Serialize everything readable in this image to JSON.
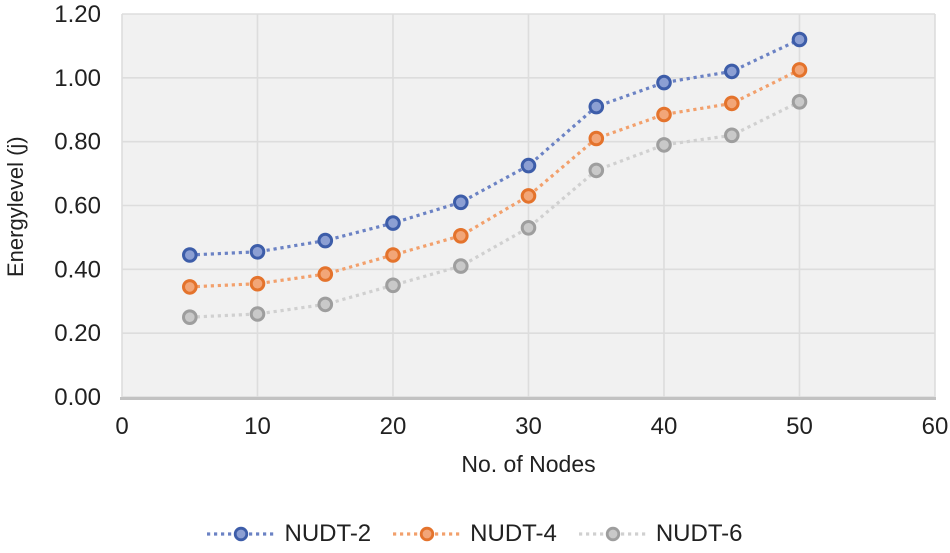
{
  "chart_data": {
    "type": "line",
    "title": "",
    "xlabel": "No. of Nodes",
    "ylabel": "Energylevel (j)",
    "x": [
      5,
      10,
      15,
      20,
      25,
      30,
      35,
      40,
      45,
      50
    ],
    "series": [
      {
        "name": "NUDT-2",
        "values": [
          0.445,
          0.455,
          0.49,
          0.545,
          0.61,
          0.725,
          0.91,
          0.985,
          1.02,
          1.12
        ],
        "line_color": "#6b82c4",
        "marker_stroke": "#3d5da9",
        "marker_fill": "#8b9ce4",
        "marker_fill_hex": "#8c9fd3"
      },
      {
        "name": "NUDT-4",
        "values": [
          0.345,
          0.355,
          0.385,
          0.445,
          0.505,
          0.63,
          0.81,
          0.885,
          0.92,
          1.025
        ],
        "line_color": "#f2a06c",
        "marker_stroke": "#e4732c",
        "marker_fill_hex": "#f2a678"
      },
      {
        "name": "NUDT-6",
        "values": [
          0.25,
          0.26,
          0.29,
          0.35,
          0.41,
          0.53,
          0.71,
          0.79,
          0.82,
          0.925
        ],
        "line_color": "#d0d0d0",
        "marker_stroke": "#9e9e9e",
        "marker_fill_hex": "#c9c9c9"
      }
    ],
    "xlim": [
      0,
      60
    ],
    "ylim": [
      0,
      1.2
    ],
    "x_ticks": [
      {
        "value": 0,
        "label": "0"
      },
      {
        "value": 10,
        "label": "10"
      },
      {
        "value": 20,
        "label": "20"
      },
      {
        "value": 30,
        "label": "30"
      },
      {
        "value": 40,
        "label": "40"
      },
      {
        "value": 50,
        "label": "50"
      },
      {
        "value": 60,
        "label": "60"
      }
    ],
    "y_ticks": [
      {
        "value": 0.0,
        "label": "0.00"
      },
      {
        "value": 0.2,
        "label": "0.20"
      },
      {
        "value": 0.4,
        "label": "0.40"
      },
      {
        "value": 0.6,
        "label": "0.60"
      },
      {
        "value": 0.8,
        "label": "0.80"
      },
      {
        "value": 1.0,
        "label": "1.00"
      },
      {
        "value": 1.2,
        "label": "1.20"
      }
    ],
    "grid": true,
    "legend_position": "bottom",
    "line_style": "dotted",
    "colors": {
      "plot_bg": "#f1f1f1",
      "grid_color": "#dddddd",
      "axis_line_color": "#c2c2c2",
      "text_color": "#212121"
    }
  }
}
